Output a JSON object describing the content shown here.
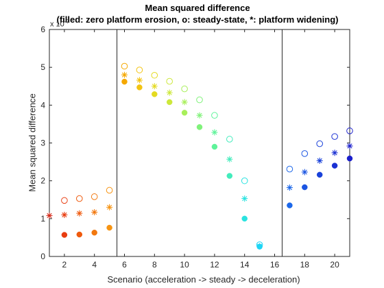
{
  "chart_data": {
    "type": "scatter",
    "title": "Mean squared difference",
    "subtitle": "(filled: zero platform erosion, o: steady-state, *: platform widening)",
    "xlabel": "Scenario (acceleration -> steady -> deceleration)",
    "ylabel": "Mean squared difference",
    "y_exponent_base": "x 10",
    "y_exponent_power": "-7",
    "xlim": [
      1,
      21
    ],
    "ylim": [
      0,
      6
    ],
    "xticks": [
      "2",
      "4",
      "6",
      "8",
      "10",
      "12",
      "14",
      "16",
      "18",
      "20"
    ],
    "yticks": [
      "0",
      "1",
      "2",
      "3",
      "4",
      "5",
      "6"
    ],
    "grid": false,
    "vertical_lines": [
      5.5,
      16.5
    ],
    "x": [
      1,
      2,
      3,
      4,
      5,
      6,
      7,
      8,
      9,
      10,
      11,
      12,
      13,
      14,
      15,
      17,
      18,
      19,
      20,
      21
    ],
    "colors": [
      "#d52a1a",
      "#e83c10",
      "#ef5a0d",
      "#f2780f",
      "#f79412",
      "#f5a800",
      "#f3c411",
      "#e4da20",
      "#cde83b",
      "#a8ef5a",
      "#80f27a",
      "#5ff39a",
      "#42ecbc",
      "#2ae3e0",
      "#1ed5f5",
      "#1c68ea",
      "#1b55e2",
      "#1a42da",
      "#1a30d3",
      "#1a1fcc"
    ],
    "series": [
      {
        "marker": "o",
        "values": [
          null,
          1.48,
          1.53,
          1.58,
          1.75,
          5.03,
          4.93,
          4.79,
          4.63,
          4.43,
          4.14,
          3.73,
          3.1,
          2.0,
          0.31,
          2.31,
          2.72,
          2.98,
          3.17,
          3.32
        ]
      },
      {
        "marker": "filled",
        "values": [
          null,
          0.57,
          0.58,
          0.63,
          0.76,
          4.62,
          4.47,
          4.29,
          4.08,
          3.8,
          3.42,
          2.9,
          2.13,
          1.0,
          0.26,
          1.35,
          1.83,
          2.16,
          2.4,
          2.59
        ]
      },
      {
        "marker": "*",
        "values": [
          1.08,
          1.1,
          1.14,
          1.17,
          1.3,
          4.8,
          4.66,
          4.5,
          4.33,
          4.08,
          3.73,
          3.28,
          2.57,
          1.53,
          0.27,
          1.82,
          2.23,
          2.53,
          2.74,
          2.92
        ]
      }
    ]
  }
}
